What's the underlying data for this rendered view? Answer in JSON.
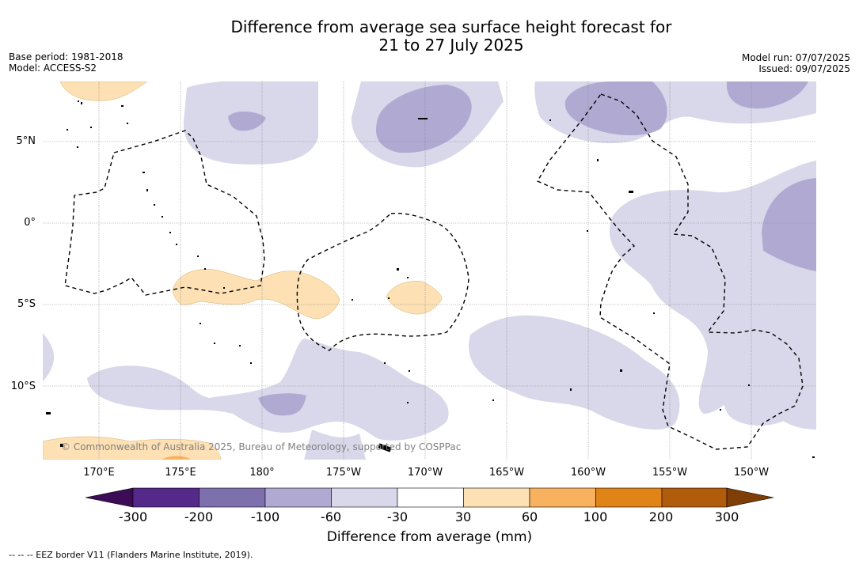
{
  "title": {
    "line1": "Difference from average sea surface height forecast for",
    "line2": "21 to 27 July 2025"
  },
  "meta": {
    "base_period": "Base period: 1981-2018",
    "model": "Model: ACCESS-S2",
    "model_run": "Model run: 07/07/2025",
    "issued": "Issued: 09/07/2025"
  },
  "map": {
    "lon_labels": [
      "170°E",
      "175°E",
      "180°",
      "175°W",
      "170°W",
      "165°W",
      "160°W",
      "155°W",
      "150°W"
    ],
    "lat_labels": [
      "5°N",
      "0°",
      "5°S",
      "10°S"
    ],
    "copyright": "© Commonwealth of Australia 2025, Bureau of Meteorology, supported by COSPPac",
    "colors": {
      "neg_30_60": "#d8d8ea",
      "neg_60_100": "#b0aad2",
      "pos_30_60": "#fde0b4",
      "pos_60_100": "#f8b25f",
      "land": "#000000",
      "eez": "#000000"
    }
  },
  "colorbar": {
    "ticks": [
      "-300",
      "-200",
      "-100",
      "-60",
      "-30",
      "30",
      "60",
      "100",
      "200",
      "300"
    ],
    "colors": [
      "#3d0c56",
      "#55298a",
      "#7e6fad",
      "#b0aad2",
      "#d8d8ea",
      "#ffffff",
      "#fde0b4",
      "#f8b25f",
      "#e08417",
      "#b15c0b",
      "#7e3e06"
    ],
    "label": "Difference from average (mm)"
  },
  "footer": {
    "legend": "-- -- -- EEZ border V11 (Flanders Marine Institute, 2019)."
  }
}
